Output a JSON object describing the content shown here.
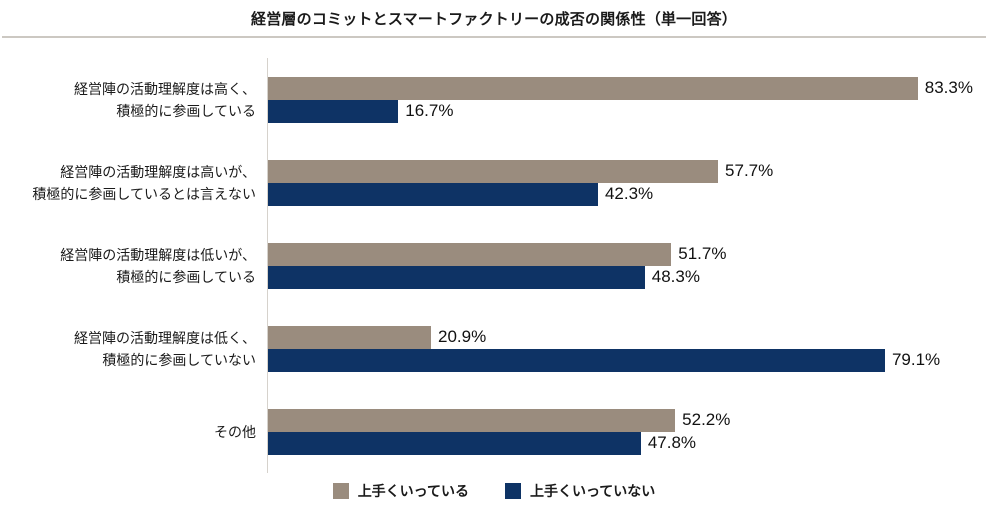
{
  "title": "経営層のコミットとスマートファクトリーの成否の関係性（単一回答）",
  "colors": {
    "series_success": "#9a8c7e",
    "series_failure": "#0e3365",
    "divider": "#ccc8c2",
    "axis_line": "#d6d2cc",
    "text": "#1a1a1a"
  },
  "chart_data": {
    "type": "bar",
    "orientation": "horizontal",
    "title": "経営層のコミットとスマートファクトリーの成否の関係性（単一回答）",
    "categories": [
      "経営陣の活動理解度は高く、\n積極的に参画している",
      "経営陣の活動理解度は高いが、\n積極的に参画しているとは言えない",
      "経営陣の活動理解度は低いが、\n積極的に参画している",
      "経営陣の活動理解度は低く、\n積極的に参画していない",
      "その他"
    ],
    "series": [
      {
        "name": "上手くいっている",
        "color": "#9a8c7e",
        "values": [
          83.3,
          57.7,
          51.7,
          20.9,
          52.2
        ]
      },
      {
        "name": "上手くいっていない",
        "color": "#0e3365",
        "values": [
          16.7,
          42.3,
          48.3,
          79.1,
          47.8
        ]
      }
    ],
    "value_suffix": "%",
    "xlim": [
      0,
      100
    ],
    "grid": false,
    "legend_position": "bottom",
    "data_labels": true
  }
}
